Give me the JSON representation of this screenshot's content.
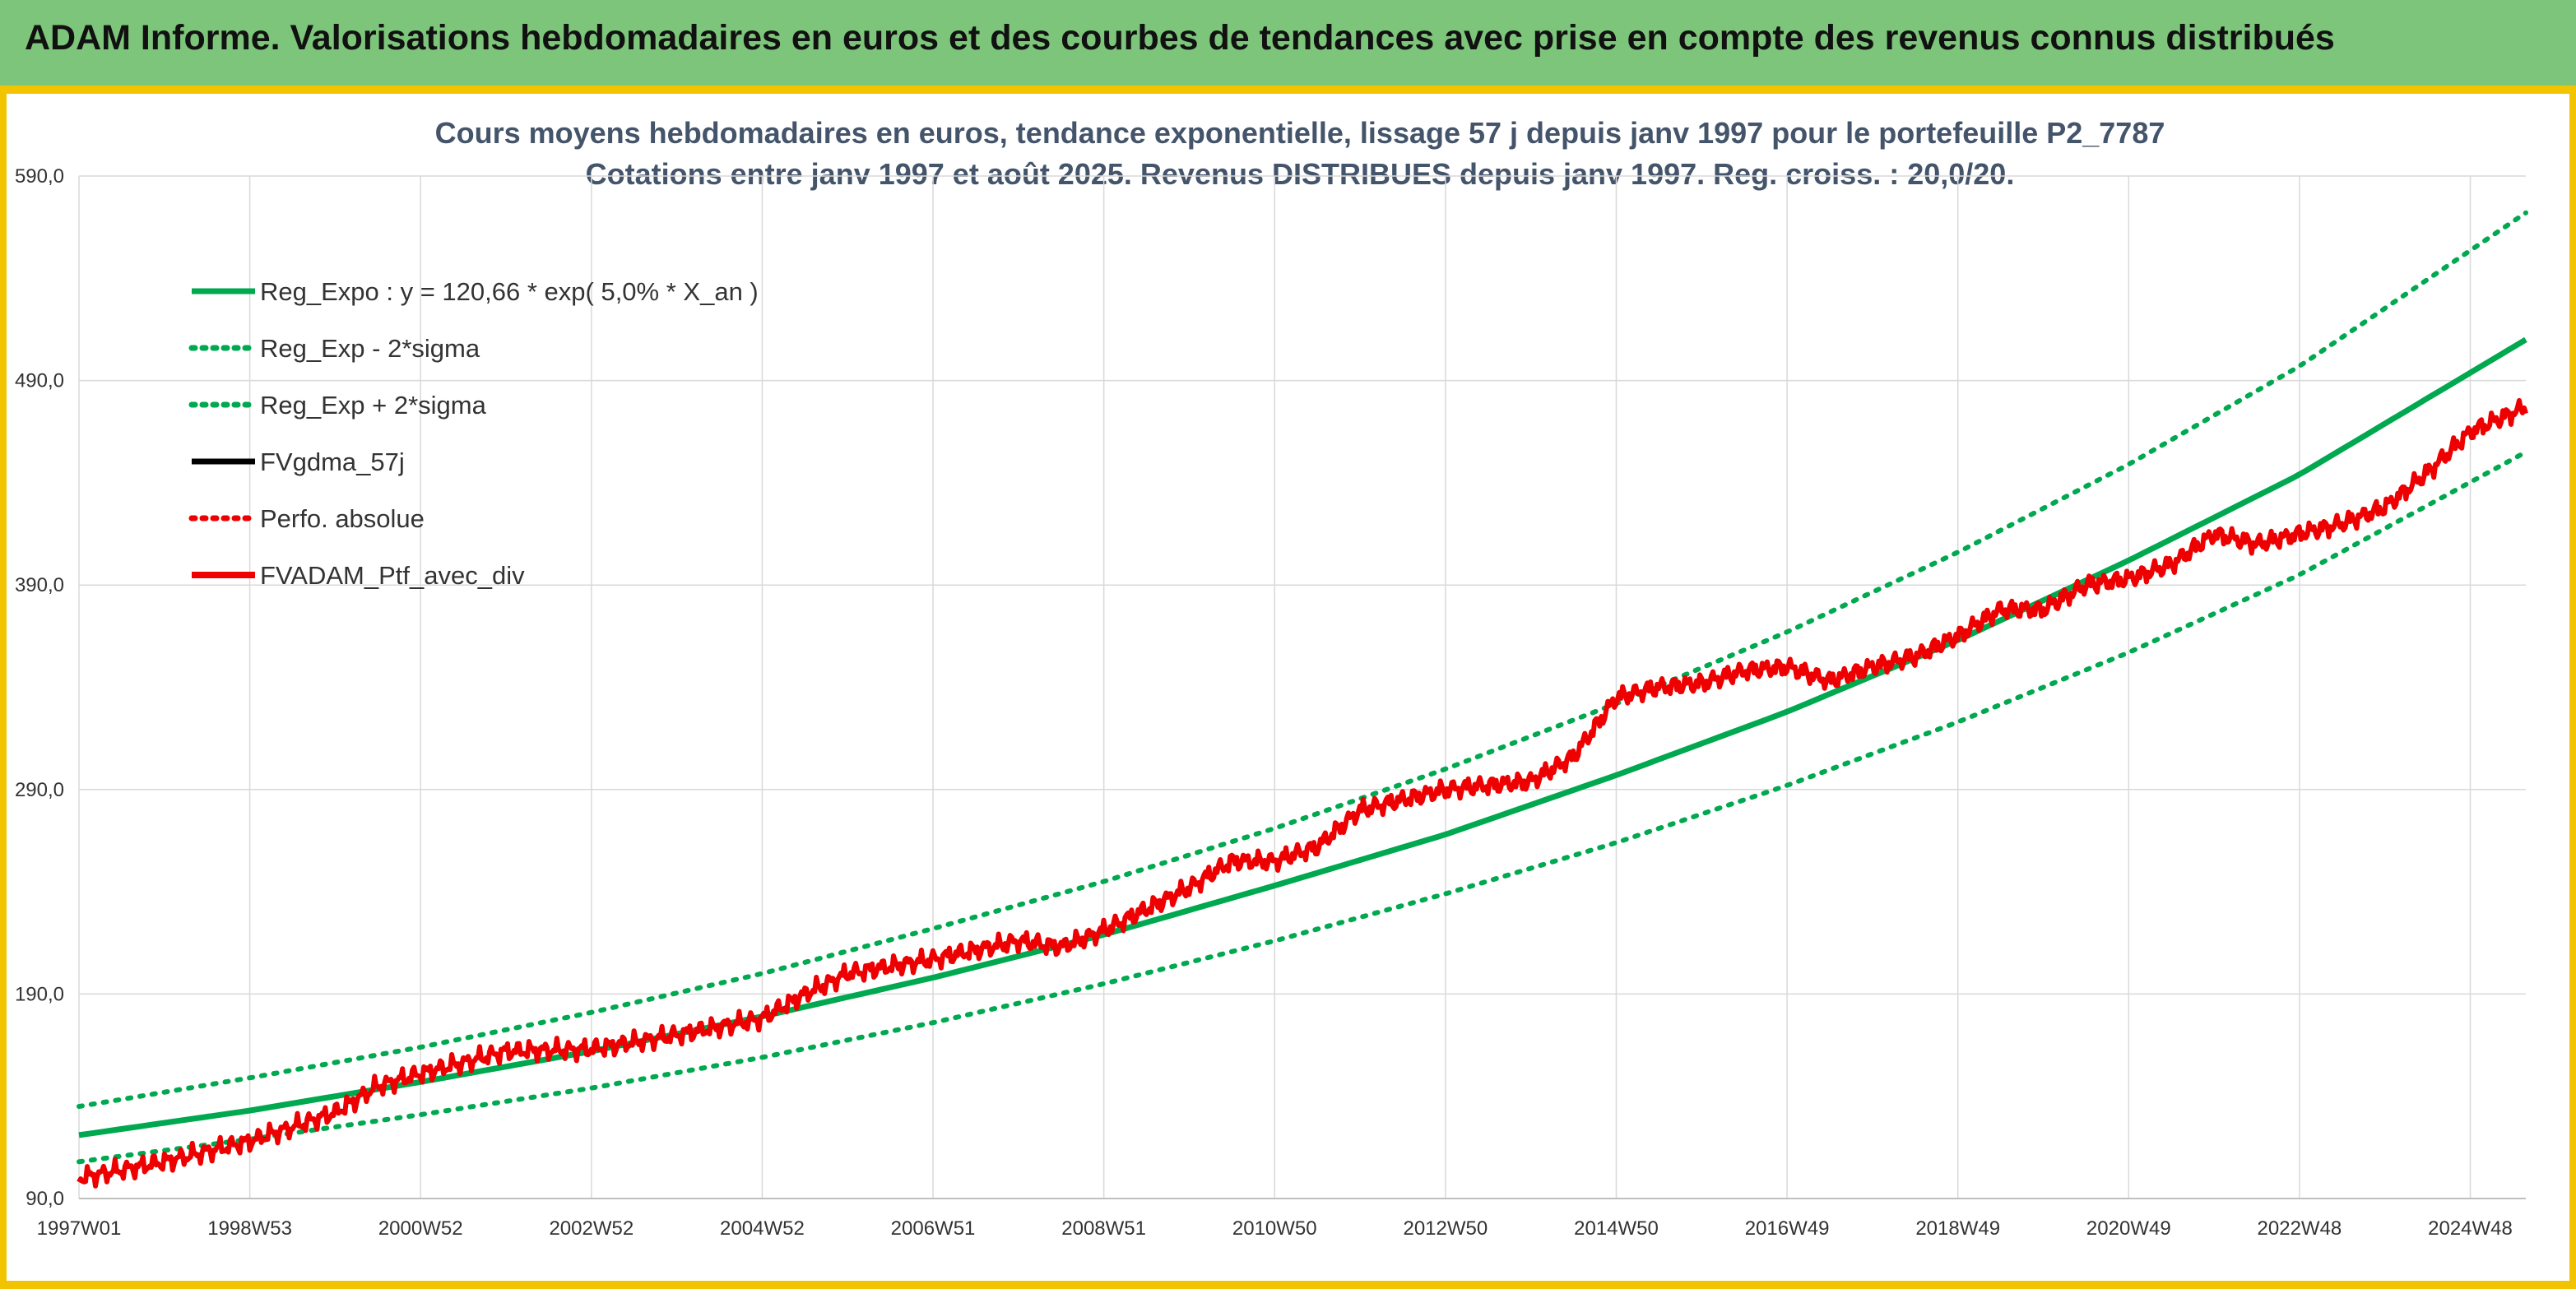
{
  "header": {
    "title": "ADAM Informe. Valorisations hebdomadaires en euros et des courbes de tendances avec prise en compte des revenus connus distribués"
  },
  "colors": {
    "header_bg": "#7dc57a",
    "accent": "#f2c400",
    "reg_green": "#00a850",
    "fv_black": "#000000",
    "ptf_red": "#ee0000",
    "title_color": "#44546a"
  },
  "chart_data": {
    "type": "line",
    "title": "Cours moyens hebdomadaires en euros, tendance exponentielle, lissage 57 j depuis janv 1997 pour le portefeuille P2_7787",
    "subtitle": "Cotations entre janv 1997 et août 2025. Revenus DISTRIBUES depuis janv 1997. Reg. croiss. : 20,0/20.",
    "xlabel": "",
    "ylabel": "",
    "x_range": [
      1997.0,
      2025.65
    ],
    "ylim": [
      90,
      590
    ],
    "grid": true,
    "legend_position": "top-left",
    "y_ticks": [
      "590,0",
      "490,0",
      "390,0",
      "290,0",
      "190,0",
      "90,0"
    ],
    "y_tick_values": [
      590,
      490,
      390,
      290,
      190,
      90
    ],
    "x_ticks": [
      {
        "label": "1997W01",
        "x": 1997.0
      },
      {
        "label": "1998W53",
        "x": 1999.0
      },
      {
        "label": "2000W52",
        "x": 2001.0
      },
      {
        "label": "2002W52",
        "x": 2003.0
      },
      {
        "label": "2004W52",
        "x": 2005.0
      },
      {
        "label": "2006W51",
        "x": 2007.0
      },
      {
        "label": "2008W51",
        "x": 2009.0
      },
      {
        "label": "2010W50",
        "x": 2011.0
      },
      {
        "label": "2012W50",
        "x": 2013.0
      },
      {
        "label": "2014W50",
        "x": 2015.0
      },
      {
        "label": "2016W49",
        "x": 2017.0
      },
      {
        "label": "2018W49",
        "x": 2019.0
      },
      {
        "label": "2020W49",
        "x": 2021.0
      },
      {
        "label": "2022W48",
        "x": 2023.0
      },
      {
        "label": "2024W48",
        "x": 2025.0
      }
    ],
    "series": [
      {
        "name": "Reg_Expo : y = 120,66 * exp( 5,0% *  X_an )",
        "style": "solid",
        "color": "#00a850",
        "x": [
          1997.0,
          1999.0,
          2001.0,
          2003.0,
          2005.0,
          2007.0,
          2009.0,
          2011.0,
          2013.0,
          2015.0,
          2017.0,
          2019.0,
          2021.0,
          2023.0,
          2025.65
        ],
        "values": [
          121,
          133,
          147,
          162,
          179,
          198,
          219,
          243,
          268,
          297,
          328,
          363,
          402,
          444,
          510
        ]
      },
      {
        "name": "Reg_Exp - 2*sigma",
        "style": "dotted",
        "color": "#00a850",
        "x": [
          1997.0,
          1999.0,
          2001.0,
          2003.0,
          2005.0,
          2007.0,
          2009.0,
          2011.0,
          2013.0,
          2015.0,
          2017.0,
          2019.0,
          2021.0,
          2023.0,
          2025.65
        ],
        "values": [
          108,
          119,
          131,
          144,
          159,
          176,
          195,
          216,
          239,
          264,
          292,
          323,
          357,
          395,
          455
        ]
      },
      {
        "name": "Reg_Exp + 2*sigma",
        "style": "dotted",
        "color": "#00a850",
        "x": [
          1997.0,
          1999.0,
          2001.0,
          2003.0,
          2005.0,
          2007.0,
          2009.0,
          2011.0,
          2013.0,
          2015.0,
          2017.0,
          2019.0,
          2021.0,
          2023.0,
          2025.65
        ],
        "values": [
          135,
          149,
          164,
          181,
          200,
          222,
          245,
          271,
          300,
          332,
          367,
          406,
          449,
          497,
          572
        ]
      },
      {
        "name": "FVgdma_57j",
        "style": "solid",
        "color": "#000000",
        "x": [
          1997.0,
          1998.0,
          1999.0,
          2000.0,
          2000.5,
          2001.0,
          2002.0,
          2003.0,
          2004.0,
          2005.0,
          2005.5,
          2006.0,
          2007.0,
          2008.0,
          2008.5,
          2009.0,
          2010.0,
          2010.5,
          2011.0,
          2011.5,
          2012.0,
          2013.0,
          2014.0,
          2014.5,
          2015.0,
          2015.5,
          2016.0,
          2016.5,
          2017.0,
          2017.5,
          2018.0,
          2018.5,
          2019.0,
          2019.5,
          2020.0,
          2020.5,
          2021.0,
          2021.5,
          2022.0,
          2022.5,
          2023.0,
          2023.5,
          2024.0,
          2024.5,
          2025.0,
          2025.65
        ],
        "values": [
          100,
          108,
          118,
          132,
          145,
          151,
          162,
          163,
          170,
          178,
          190,
          200,
          207,
          216,
          213,
          221,
          242,
          255,
          255,
          262,
          280,
          290,
          294,
          306,
          335,
          340,
          342,
          348,
          350,
          343,
          350,
          355,
          365,
          378,
          378,
          390,
          393,
          400,
          415,
          410,
          415,
          420,
          428,
          445,
          465,
          477
        ]
      },
      {
        "name": "Perfo. absolue",
        "style": "dotted",
        "color": "#ee0000",
        "x": [
          1997.0,
          1998.0,
          1999.0,
          2000.0,
          2000.5,
          2001.0,
          2002.0,
          2003.0,
          2004.0,
          2005.0,
          2005.5,
          2006.0,
          2007.0,
          2008.0,
          2008.5,
          2009.0,
          2010.0,
          2010.5,
          2011.0,
          2011.5,
          2012.0,
          2013.0,
          2014.0,
          2014.5,
          2015.0,
          2015.5,
          2016.0,
          2016.5,
          2017.0,
          2017.5,
          2018.0,
          2018.5,
          2019.0,
          2019.5,
          2020.0,
          2020.5,
          2021.0,
          2021.5,
          2022.0,
          2022.5,
          2023.0,
          2023.5,
          2024.0,
          2024.5,
          2025.0,
          2025.65
        ],
        "values": [
          100,
          108,
          118,
          132,
          145,
          151,
          162,
          163,
          170,
          178,
          190,
          200,
          207,
          216,
          213,
          221,
          242,
          255,
          255,
          262,
          280,
          290,
          294,
          306,
          335,
          340,
          342,
          348,
          350,
          343,
          350,
          355,
          365,
          378,
          378,
          390,
          393,
          400,
          415,
          410,
          415,
          420,
          428,
          445,
          465,
          477
        ]
      },
      {
        "name": "FVADAM_Ptf_avec_div",
        "style": "solid",
        "color": "#ee0000",
        "x": [
          1997.0,
          1998.0,
          1999.0,
          2000.0,
          2000.5,
          2001.0,
          2002.0,
          2003.0,
          2004.0,
          2005.0,
          2005.5,
          2006.0,
          2007.0,
          2008.0,
          2008.5,
          2009.0,
          2010.0,
          2010.5,
          2011.0,
          2011.5,
          2012.0,
          2013.0,
          2014.0,
          2014.5,
          2015.0,
          2015.5,
          2016.0,
          2016.5,
          2017.0,
          2017.5,
          2018.0,
          2018.5,
          2019.0,
          2019.5,
          2020.0,
          2020.5,
          2021.0,
          2021.5,
          2022.0,
          2022.5,
          2023.0,
          2023.5,
          2024.0,
          2024.5,
          2025.0,
          2025.65
        ],
        "values": [
          100,
          108,
          118,
          132,
          145,
          151,
          162,
          163,
          170,
          178,
          190,
          200,
          207,
          216,
          213,
          221,
          242,
          255,
          255,
          262,
          280,
          290,
          294,
          306,
          335,
          340,
          342,
          348,
          350,
          343,
          350,
          355,
          365,
          378,
          378,
          390,
          393,
          400,
          415,
          410,
          415,
          420,
          428,
          445,
          465,
          477
        ]
      }
    ]
  }
}
